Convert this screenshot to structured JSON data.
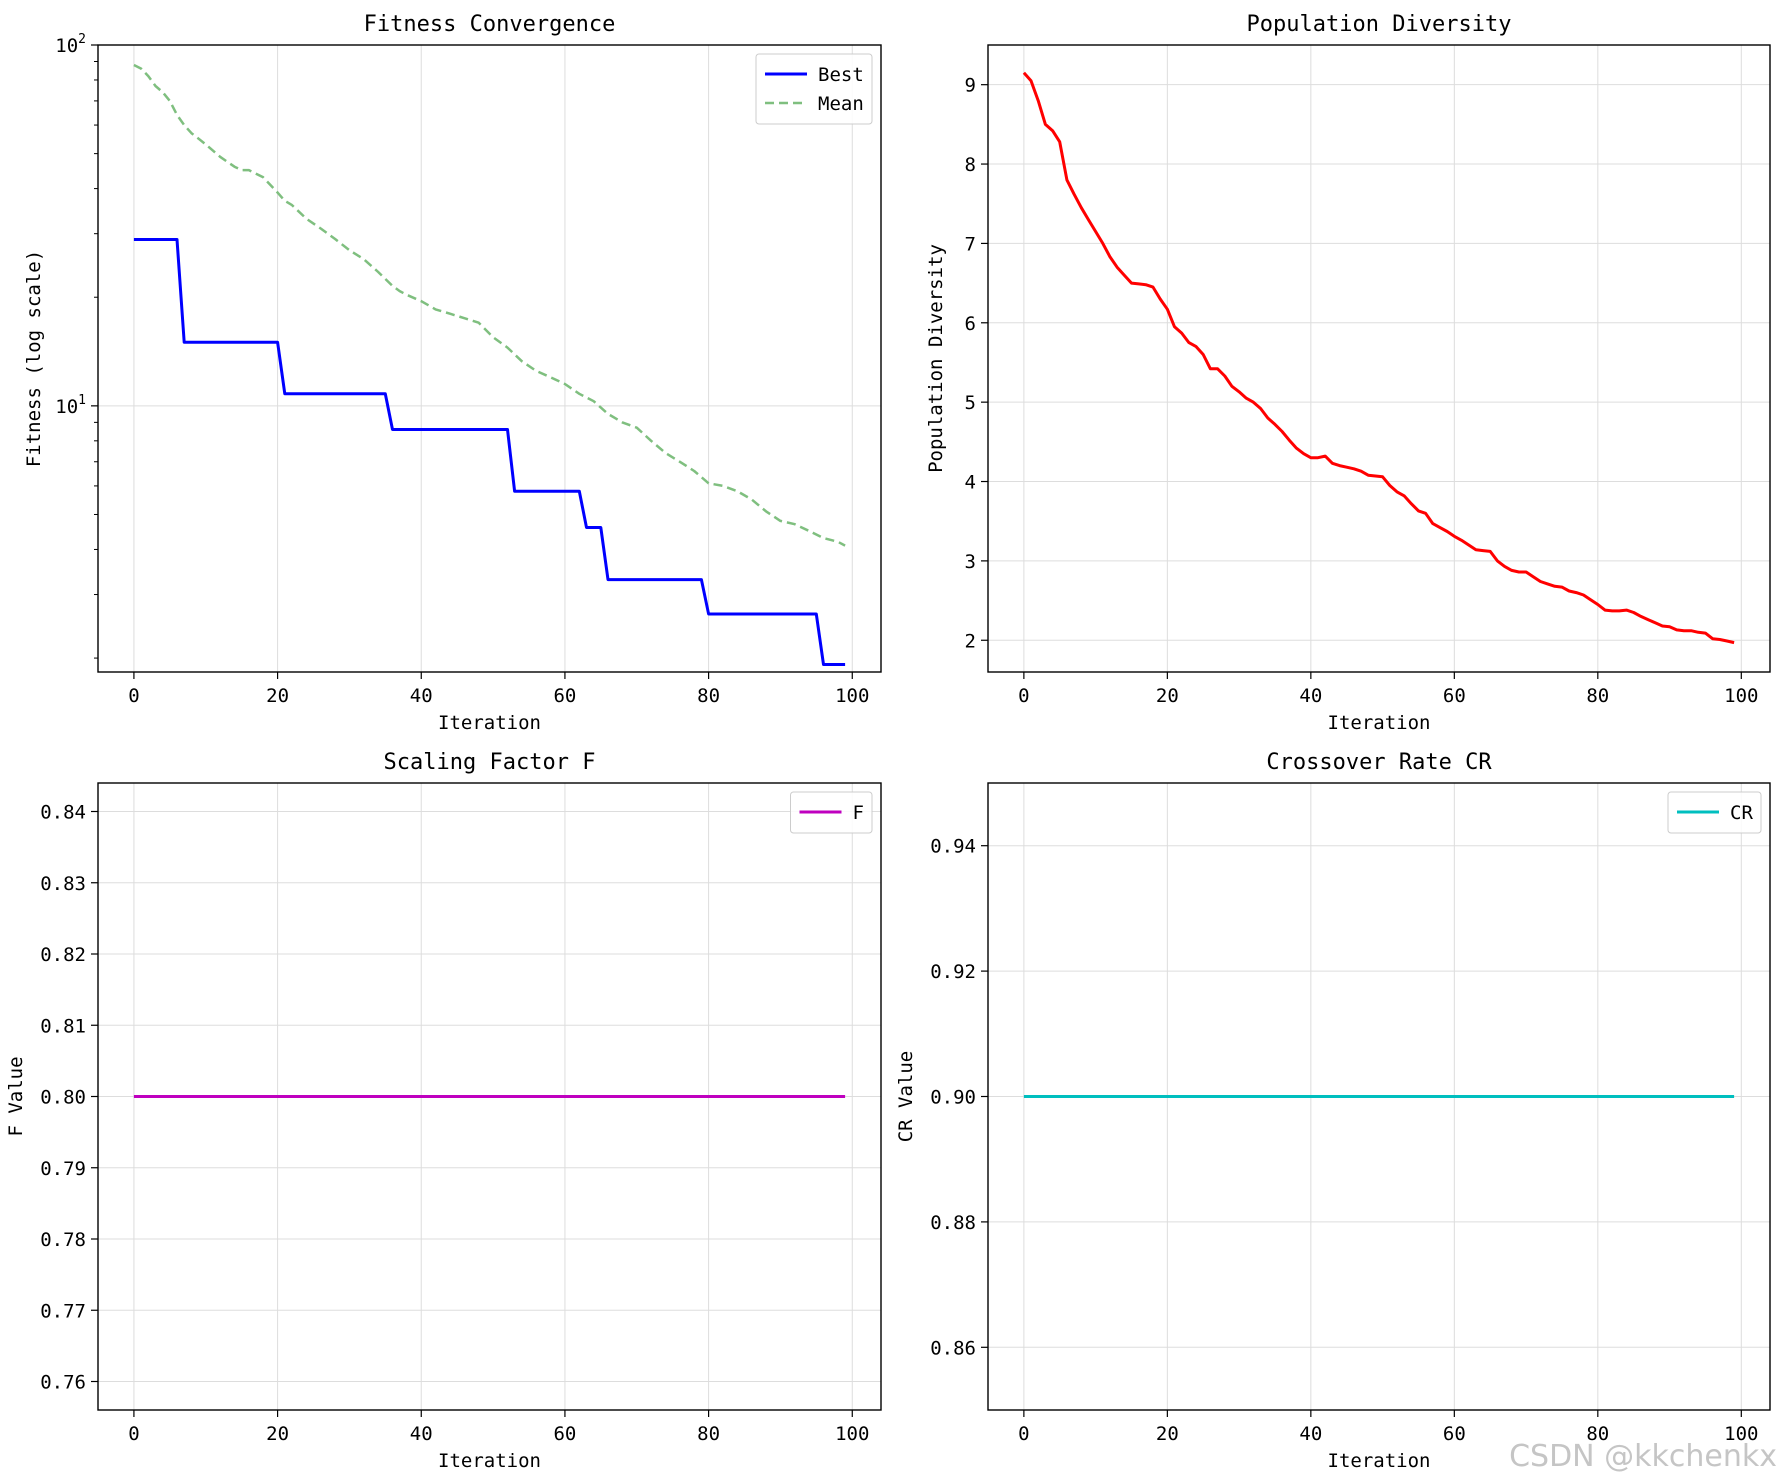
{
  "watermark": "CSDN @kkchenkx",
  "chart_data": [
    {
      "id": "fitness",
      "type": "line",
      "title": "Fitness Convergence",
      "xlabel": "Iteration",
      "ylabel": "Fitness (log scale)",
      "yscale": "log",
      "xlim": [
        -5,
        104
      ],
      "ylim": [
        1.83,
        100
      ],
      "xticks": [
        0,
        20,
        40,
        60,
        80,
        100
      ],
      "yticks": [
        {
          "value": 100,
          "base": "10",
          "exp": "2"
        },
        {
          "value": 10,
          "base": "10",
          "exp": "1"
        }
      ],
      "grid": true,
      "legend": "top-right",
      "series": [
        {
          "name": "Best",
          "color": "#0000ff",
          "style": "solid",
          "x": [
            0,
            6,
            7,
            20,
            21,
            35,
            36,
            52,
            53,
            62,
            63,
            65,
            66,
            79,
            80,
            95,
            96,
            99
          ],
          "y": [
            28.9,
            28.9,
            15.0,
            15.0,
            10.8,
            10.8,
            8.6,
            8.6,
            5.8,
            5.8,
            4.6,
            4.6,
            3.3,
            3.3,
            2.65,
            2.65,
            1.92,
            1.92
          ]
        },
        {
          "name": "Mean",
          "color": "#7fbf7f",
          "style": "dashed",
          "x": [
            0,
            1,
            2,
            3,
            4,
            5,
            6,
            7,
            8,
            9,
            10,
            12,
            14,
            15,
            16,
            18,
            20,
            21,
            22,
            24,
            26,
            27,
            28,
            30,
            32,
            34,
            36,
            37,
            38,
            40,
            42,
            44,
            46,
            48,
            50,
            52,
            54,
            56,
            58,
            60,
            62,
            64,
            66,
            68,
            70,
            72,
            74,
            76,
            78,
            80,
            82,
            84,
            86,
            88,
            90,
            92,
            94,
            96,
            98,
            99
          ],
          "y": [
            88,
            86,
            82,
            77,
            74,
            70,
            64,
            60,
            57,
            55,
            53,
            49,
            46,
            45,
            45,
            43,
            39,
            37,
            36,
            33,
            31,
            30,
            29,
            27,
            25.5,
            23.5,
            21.5,
            20.8,
            20.3,
            19.5,
            18.5,
            18,
            17.5,
            17,
            15.5,
            14.5,
            13.3,
            12.5,
            12,
            11.5,
            10.8,
            10.3,
            9.5,
            9,
            8.7,
            8,
            7.4,
            7,
            6.6,
            6.1,
            6,
            5.8,
            5.5,
            5.1,
            4.8,
            4.7,
            4.5,
            4.3,
            4.2,
            4.1
          ]
        }
      ]
    },
    {
      "id": "diversity",
      "type": "line",
      "title": "Population Diversity",
      "xlabel": "Iteration",
      "ylabel": "Population Diversity",
      "yscale": "linear",
      "xlim": [
        -5,
        104
      ],
      "ylim": [
        1.6,
        9.5
      ],
      "xticks": [
        0,
        20,
        40,
        60,
        80,
        100
      ],
      "yticks": [
        2,
        3,
        4,
        5,
        6,
        7,
        8,
        9
      ],
      "grid": true,
      "legend": "none",
      "series": [
        {
          "name": "Diversity",
          "color": "#ff0000",
          "style": "solid",
          "x": [
            0,
            1,
            2,
            3,
            4,
            5,
            6,
            7,
            8,
            9,
            10,
            11,
            12,
            13,
            14,
            15,
            16,
            17,
            18,
            19,
            20,
            21,
            22,
            23,
            24,
            25,
            26,
            27,
            28,
            29,
            30,
            31,
            32,
            33,
            34,
            35,
            36,
            37,
            38,
            39,
            40,
            41,
            42,
            43,
            44,
            45,
            46,
            47,
            48,
            49,
            50,
            51,
            52,
            53,
            54,
            55,
            56,
            57,
            58,
            59,
            60,
            61,
            62,
            63,
            64,
            65,
            66,
            67,
            68,
            69,
            70,
            71,
            72,
            73,
            74,
            75,
            76,
            77,
            78,
            79,
            80,
            81,
            82,
            83,
            84,
            85,
            86,
            87,
            88,
            89,
            90,
            91,
            92,
            93,
            94,
            95,
            96,
            97,
            98,
            99
          ],
          "y": [
            9.15,
            9.05,
            8.8,
            8.5,
            8.42,
            8.28,
            7.8,
            7.62,
            7.45,
            7.3,
            7.15,
            7.0,
            6.83,
            6.7,
            6.6,
            6.5,
            6.49,
            6.48,
            6.45,
            6.3,
            6.17,
            5.95,
            5.87,
            5.75,
            5.7,
            5.6,
            5.42,
            5.42,
            5.33,
            5.2,
            5.13,
            5.05,
            5.0,
            4.92,
            4.8,
            4.72,
            4.63,
            4.52,
            4.42,
            4.35,
            4.3,
            4.3,
            4.32,
            4.23,
            4.2,
            4.18,
            4.16,
            4.13,
            4.08,
            4.07,
            4.06,
            3.95,
            3.87,
            3.82,
            3.72,
            3.63,
            3.6,
            3.47,
            3.42,
            3.37,
            3.31,
            3.26,
            3.2,
            3.14,
            3.13,
            3.12,
            3.0,
            2.93,
            2.88,
            2.86,
            2.86,
            2.8,
            2.74,
            2.71,
            2.68,
            2.67,
            2.62,
            2.6,
            2.57,
            2.51,
            2.45,
            2.38,
            2.37,
            2.37,
            2.38,
            2.35,
            2.3,
            2.26,
            2.22,
            2.18,
            2.17,
            2.13,
            2.12,
            2.12,
            2.1,
            2.09,
            2.02,
            2.01,
            1.99,
            1.97
          ]
        }
      ]
    },
    {
      "id": "scaling",
      "type": "line",
      "title": "Scaling Factor F",
      "xlabel": "Iteration",
      "ylabel": "F Value",
      "yscale": "linear",
      "xlim": [
        -5,
        104
      ],
      "ylim": [
        0.756,
        0.844
      ],
      "xticks": [
        0,
        20,
        40,
        60,
        80,
        100
      ],
      "yticks": [
        0.76,
        0.77,
        0.78,
        0.79,
        0.8,
        0.81,
        0.82,
        0.83,
        0.84
      ],
      "ytick_labels": [
        "0.76",
        "0.77",
        "0.78",
        "0.79",
        "0.80",
        "0.81",
        "0.82",
        "0.83",
        "0.84"
      ],
      "grid": true,
      "legend": "top-right",
      "series": [
        {
          "name": "F",
          "color": "#bf00bf",
          "style": "solid",
          "x": [
            0,
            99
          ],
          "y": [
            0.8,
            0.8
          ]
        }
      ]
    },
    {
      "id": "crossover",
      "type": "line",
      "title": "Crossover Rate CR",
      "xlabel": "Iteration",
      "ylabel": "CR Value",
      "yscale": "linear",
      "xlim": [
        -5,
        104
      ],
      "ylim": [
        0.85,
        0.95
      ],
      "xticks": [
        0,
        20,
        40,
        60,
        80,
        100
      ],
      "yticks": [
        0.86,
        0.88,
        0.9,
        0.92,
        0.94
      ],
      "ytick_labels": [
        "0.86",
        "0.88",
        "0.90",
        "0.92",
        "0.94"
      ],
      "grid": true,
      "legend": "top-right",
      "series": [
        {
          "name": "CR",
          "color": "#00bfbf",
          "style": "solid",
          "x": [
            0,
            99
          ],
          "y": [
            0.9,
            0.9
          ]
        }
      ]
    }
  ]
}
